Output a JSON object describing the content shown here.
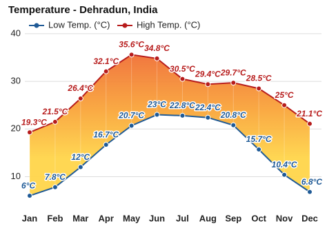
{
  "chart_data": {
    "type": "line",
    "title": "Temperature - Dehradun, India",
    "categories": [
      "Jan",
      "Feb",
      "Mar",
      "Apr",
      "May",
      "Jun",
      "Jul",
      "Aug",
      "Sep",
      "Oct",
      "Nov",
      "Dec"
    ],
    "series": [
      {
        "name": "Low Temp. (°C)",
        "color": "#1f5a96",
        "values": [
          6,
          7.8,
          12,
          16.7,
          20.7,
          23,
          22.8,
          22.4,
          20.8,
          15.7,
          10.4,
          6.8
        ],
        "value_labels": [
          "6°C",
          "7.8°C",
          "12°C",
          "16.7°C",
          "20.7°C",
          "23°C",
          "22.8°C",
          "22.4°C",
          "20.8°C",
          "15.7°C",
          "10.4°C",
          "6.8°C"
        ]
      },
      {
        "name": "High Temp. (°C)",
        "color": "#b71c1c",
        "values": [
          19.3,
          21.5,
          26.4,
          32.1,
          35.6,
          34.8,
          30.5,
          29.4,
          29.7,
          28.5,
          25,
          21.1
        ],
        "value_labels": [
          "19.3°C",
          "21.5°C",
          "26.4°C",
          "32.1°C",
          "35.6°C",
          "34.8°C",
          "30.5°C",
          "29.4°C",
          "29.7°C",
          "28.5°C",
          "25°C",
          "21.1°C"
        ]
      }
    ],
    "ylim": [
      4,
      41
    ],
    "yticks": [
      10,
      20,
      30,
      40
    ],
    "grid": true
  }
}
